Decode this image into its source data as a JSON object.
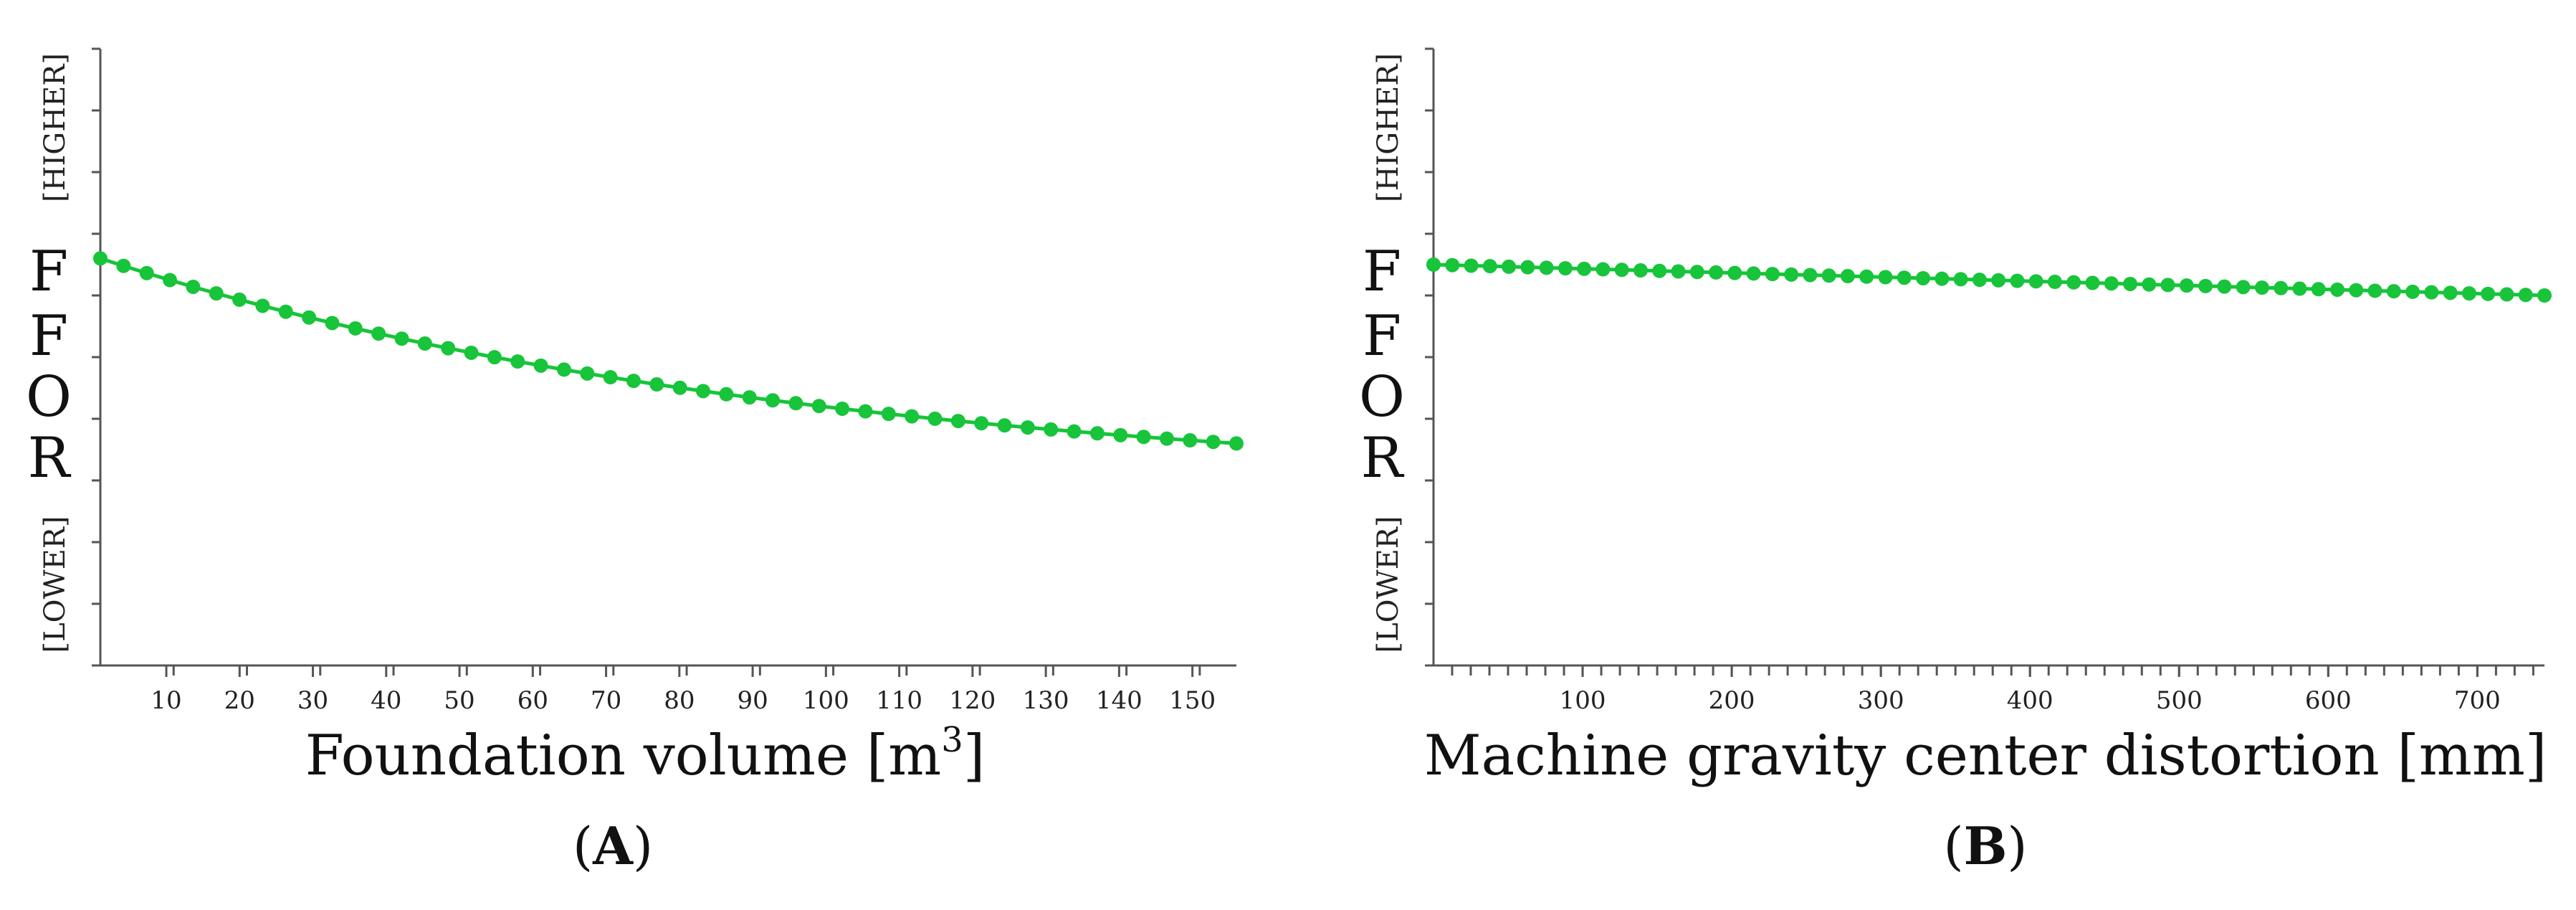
{
  "chart_data": [
    {
      "type": "line",
      "panel_label": "A",
      "xlabel_main": "Foundation volume [m",
      "xlabel_sup": "3",
      "xlabel_end": "]",
      "ylabel_letters": [
        "F",
        "F",
        "O",
        "R"
      ],
      "ylabel_higher": "[HIGHER]",
      "ylabel_lower": "[LOWER]",
      "xlim": [
        1,
        156
      ],
      "ylim": [
        0,
        10
      ],
      "x_ticks": [
        10,
        20,
        30,
        40,
        50,
        60,
        70,
        80,
        90,
        100,
        110,
        120,
        130,
        140,
        150
      ],
      "x_minor_step": 10,
      "y_tick_count": 10,
      "series_color": "#17c43a",
      "x": [
        1,
        156
      ],
      "y_curve": {
        "type": "exp",
        "start": 6.6,
        "end": 3.6,
        "n_points": 50
      }
    },
    {
      "type": "line",
      "panel_label": "B",
      "xlabel_main": "Machine gravity center distortion [mm]",
      "xlabel_sup": "",
      "xlabel_end": "",
      "ylabel_letters": [
        "F",
        "F",
        "O",
        "R"
      ],
      "ylabel_higher": "[HIGHER]",
      "ylabel_lower": "[LOWER]",
      "xlim": [
        0,
        745
      ],
      "ylim": [
        0,
        10
      ],
      "x_ticks": [
        100,
        200,
        300,
        400,
        500,
        600,
        700
      ],
      "x_minor_step": 12.5,
      "y_tick_count": 10,
      "series_color": "#17c43a",
      "x": [
        0,
        745
      ],
      "y_curve": {
        "type": "linear",
        "start": 6.5,
        "end": 6.0,
        "n_points": 60
      }
    }
  ]
}
